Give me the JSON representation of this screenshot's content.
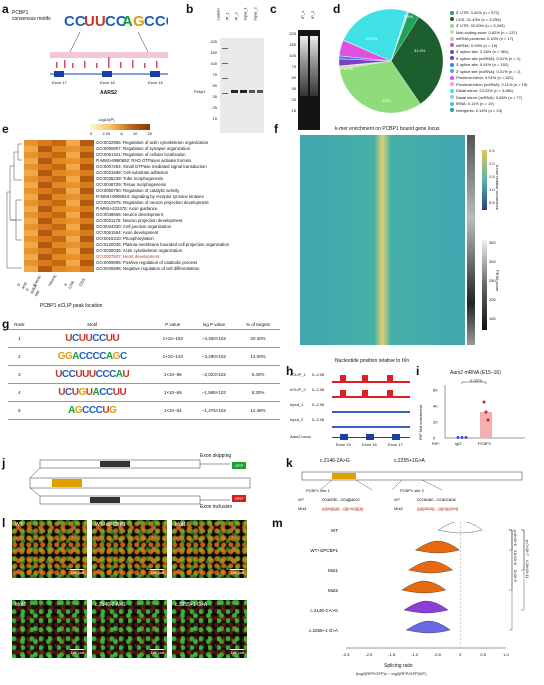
{
  "panels": {
    "a": {
      "letter": "a",
      "motif_title": "PCBP1 consensus motifs",
      "exons": [
        "Exon 17",
        "Exon 16",
        "Exon 15"
      ],
      "gene": "AARS2",
      "track_ylabel": "Read coverage"
    },
    "b": {
      "letter": "b",
      "lanes": [
        "Ladder",
        "IP_1",
        "IP_2",
        "Input_1",
        "Input_2"
      ],
      "lane_nums": [
        "1",
        "2",
        "3",
        "4",
        "5"
      ],
      "mw": [
        "225",
        "150",
        "100",
        "75",
        "50",
        "35",
        "25",
        "15"
      ],
      "protein": "Pcbp1"
    },
    "c": {
      "letter": "c",
      "lanes": [
        "IP_1",
        "IP_2"
      ],
      "mw": [
        "225",
        "150",
        "100",
        "75",
        "50",
        "35",
        "25",
        "15"
      ]
    },
    "d": {
      "letter": "d"
    },
    "e": {
      "letter": "e",
      "scale_title": "-log10(P)",
      "scale_ticks": [
        "0",
        "2.34",
        "6",
        "10",
        "20"
      ],
      "xlabel": "PCBP1 eCLIP peak location",
      "cols": [
        "5' and 3' splice site",
        "Exonic",
        "Intronic",
        "3' UTR",
        "CDS"
      ]
    },
    "f": {
      "letter": "f",
      "title": "k-mer enrichment on PCBP1 bound gene locus",
      "xlabel": "Nucleotide position relative to tXn",
      "scale1_title": "k-mer relative occurrence",
      "scale1_ticks": [
        "2.5",
        "2.0",
        "1.5",
        "1.0",
        "0.5"
      ],
      "scale2_title": "PESA score",
      "scale2_ticks": [
        "350",
        "300",
        "250",
        "200",
        "150"
      ],
      "side_label": "PESA score"
    },
    "g": {
      "letter": "g",
      "headers": [
        "Rank",
        "Motif",
        "P value",
        "log P value",
        "% of targets"
      ]
    },
    "h": {
      "letter": "h",
      "tracks": [
        {
          "name": "eCLIP_1",
          "range": "0–2.06"
        },
        {
          "name": "eCLIP_2",
          "range": "0–2.06"
        },
        {
          "name": "Input_1",
          "range": "0–2.06"
        },
        {
          "name": "Input_2",
          "range": "0–2.06"
        }
      ],
      "gene_label": "Aars2 locus",
      "exons": [
        "Exon 15",
        "Exon 16",
        "Exon 17"
      ]
    },
    "i": {
      "letter": "i",
      "title": "Aars2 mRNA (E15–16)",
      "pvalue": "0.0370",
      "ylabel": "RIP fold enrichment",
      "groups": [
        "IgG",
        "PCBP1"
      ],
      "yticks": [
        "0",
        "20",
        "40",
        "60"
      ],
      "rip_label": "RIP:"
    },
    "j": {
      "letter": "j",
      "skip_label": "Exon skipping",
      "incl_label": "Exon inclusion",
      "gfp": "GFP",
      "rfp": "RFP"
    },
    "k": {
      "letter": "k",
      "mut1_title": "c.2146-2A>G",
      "mut2_title": "c.2255+1G>A",
      "site1": "PCBP1 site 1",
      "site2": "PCBP1 site 2",
      "wt1": "WT",
      "mut1": "Mut1",
      "wt2": "WT",
      "mut2": "Mut2"
    },
    "l": {
      "letter": "l"
    },
    "m": {
      "letter": "m",
      "xlabel": "Splicing ratio",
      "xlabel2": "(log2(RFP/GFP)x − log2(RFP/GFP)WT)",
      "rows": [
        "WT",
        "WT+siPCBP1",
        "Mut1",
        "Mut2",
        "c.2146-2 A>G",
        "c.2255+1 G>A"
      ],
      "xticks": [
        "-2.5",
        "-2.0",
        "-1.5",
        "-1.0",
        "-0.5",
        "0",
        "0.5",
        "1.0"
      ]
    }
  },
  "motif_logos": {
    "a": [
      "CCUUCC",
      "AGCCCC"
    ]
  },
  "pie": {
    "legend": [
      {
        "label": "5' UTR: 3.42% (n = 572)",
        "color": "#1fa35a",
        "value": 3.42
      },
      {
        "label": "CDS: 31.43% (n = 5,255)",
        "color": "#1d5e2e",
        "value": 31.43
      },
      {
        "label": "3' UTR: 32.00% (n = 5,349)",
        "color": "#8fdc7a",
        "value": 32.0
      },
      {
        "label": "Non-coding exon: 0.82% (n = 137)",
        "color": "#c2e0a0",
        "value": 0.82
      },
      {
        "label": "miRNA proximal: 0.10% (n = 17)",
        "color": "#e7b5c9",
        "value": 0.1
      },
      {
        "label": "miRNA: 0.09% (n = 15)",
        "color": "#c25bb0",
        "value": 0.09
      },
      {
        "label": "5' splice site: 2.16% (n = 361)",
        "color": "#7d3fc7",
        "value": 2.16
      },
      {
        "label": "5' splice site (ncRNA): 0.01% (n = 1)",
        "color": "#4a4ad6",
        "value": 0.01
      },
      {
        "label": "3' splice site: 0.91% (n = 152)",
        "color": "#3c7fe0",
        "value": 0.91
      },
      {
        "label": "3' splice site (ncRNA): 0.01% (n = 1)",
        "color": "#3fa8e8",
        "value": 0.01
      },
      {
        "label": "Proximal intron: 4.91% (n = 821)",
        "color": "#e04fe0",
        "value": 4.91
      },
      {
        "label": "Proximal intron (ncRNA): 0.11% (n = 19)",
        "color": "#f0a0d8",
        "value": 0.11
      },
      {
        "label": "Distal intron: 23.22% (n = 3,881)",
        "color": "#3fe0e6",
        "value": 23.22
      },
      {
        "label": "Distal intron (ncRNA): 0.46% (n = 77)",
        "color": "#8ad0e6",
        "value": 0.46
      },
      {
        "label": "tRNA: 0.11% (n = 19)",
        "color": "#4fc0c8",
        "value": 0.11
      },
      {
        "label": "Intergenic: 0.14% (n = 24)",
        "color": "#2aa0b0",
        "value": 0.14
      }
    ],
    "slice_labels": {
      "cds": "31.4%",
      "utr3": "32%",
      "distal": "23.2%",
      "prox": "4.9%",
      "utr5": "3.4%"
    }
  },
  "go_terms": [
    "GO:0032956: Regulation of actin cytoskeleton organization",
    "GO:0050807: Regulation of synapse organization",
    "GO:0061341: Regulation of cellular localization",
    "R-MMU-8980692: RHO GTPases activate formins",
    "GO:0007264: Small GTPase mediated signal transduction",
    "GO:0031589: Cell-substrate adhesion",
    "GO:0035239: Tube morphogenesis",
    "GO:0048729: Tissue morphogenesis",
    "GO:0050790: Regulation of catalytic activity",
    "R-MMU-9006934: Signaling by receptor tyrosine kinases",
    "GO:0010975: Regulation of neuron projection development",
    "R-MMU-422475: Axon guidance",
    "GO:0048666: Neuron development",
    "GO:0031175: Neuron projection development",
    "GO:0034330: Cell junction organization",
    "GO:0061564: Axon development",
    "GO:0016310: Phosphorylation",
    "GO:0120036: Plasma membrane bounded cell projection organization",
    "GO:0030036: Actin cytoskeleton organization",
    "GO:0007507: Heart development",
    "GO:0009896: Positive regulation of catabolic process",
    "GO:0045596: Negative regulation of cell differentiation"
  ],
  "motif_table": [
    {
      "rank": "1",
      "motif": "UCUUCCUU",
      "p": "1×10−193",
      "logp": "−4,450×102",
      "pct": "20.30%"
    },
    {
      "rank": "2",
      "motif": "GGACCCCAGC",
      "p": "1×10−143",
      "logp": "−3,290×102",
      "pct": "13.00%"
    },
    {
      "rank": "3",
      "motif": "UCCUUUCCCAU",
      "p": "1×10−86",
      "logp": "−2,023×102",
      "pct": "6.40%"
    },
    {
      "rank": "4",
      "motif": "UCUGUACCUU",
      "p": "1×10−69",
      "logp": "−1,586×102",
      "pct": "8.30%"
    },
    {
      "rank": "5",
      "motif": "AGCCCUG",
      "p": "1×10−64",
      "logp": "−1,475×102",
      "pct": "12.48%"
    }
  ],
  "sig_m": [
    "p=8×10−6",
    "p=7×10−7",
    "3.8×10−6",
    "4.28×10−11",
    "5×10−9"
  ],
  "micro_labels": [
    {
      "label": "WT",
      "scale": "100 μm"
    },
    {
      "label": "WT+siPCBP1",
      "scale": "100 μm"
    },
    {
      "label": "Mut1",
      "scale": "100 μm"
    },
    {
      "label": "Mut2",
      "scale": "100 μm"
    },
    {
      "label": "c.2146-2 A>G",
      "scale": "100 μm"
    },
    {
      "label": "c.2255+1 G>A",
      "scale": "100 μm"
    }
  ]
}
